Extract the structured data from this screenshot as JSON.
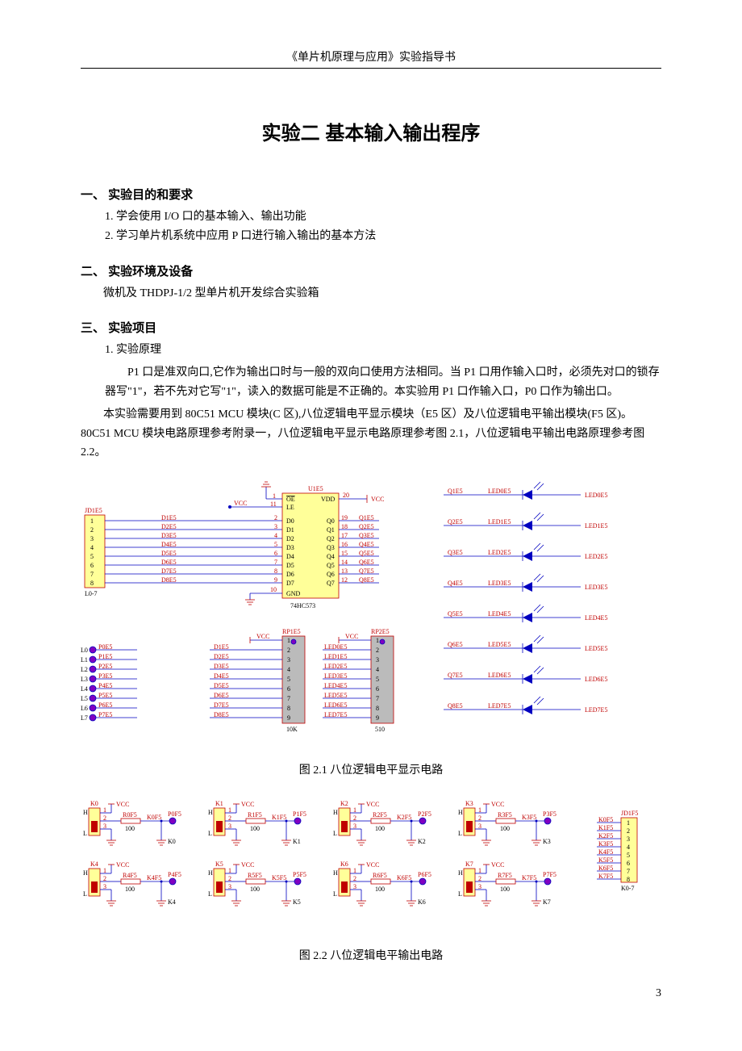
{
  "header": "《单片机原理与应用》实验指导书",
  "title": "实验二  基本输入输出程序",
  "s1": {
    "head": "一、    实验目的和要求",
    "i1": "1.    学会使用 I/O 口的基本输入、输出功能",
    "i2": "2.    学习单片机系统中应用 P 口进行输入输出的基本方法"
  },
  "s2": {
    "head": "二、    实验环境及设备",
    "p1": "微机及 THDPJ-1/2 型单片机开发综合实验箱"
  },
  "s3": {
    "head": "三、    实验项目",
    "i1": "1.    实验原理",
    "p1": "P1 口是准双向口,它作为输出口时与一般的双向口使用方法相同。当 P1 口用作输入口时，必须先对口的锁存器写\"1\"，若不先对它写\"1\"，读入的数据可能是不正确的。本实验用 P1 口作输入口，P0 口作为输出口。",
    "p2": "本实验需要用到 80C51 MCU 模块(C 区),八位逻辑电平显示模块（E5 区）及八位逻辑电平输出模块(F5 区)。80C51 MCU 模块电路原理参考附录一，八位逻辑电平显示电路原理参考图 2.1，八位逻辑电平输出电路原理参考图 2.2。"
  },
  "fig1": {
    "caption": "图 2.1   八位逻辑电平显示电路",
    "chip": "74HC573",
    "chip_ref": "U1E5",
    "conn": "JD1E5",
    "conn2": "L0-7",
    "gnd_pin": "10",
    "gnd_lbl": "GND",
    "vcc_lbl": "VCC",
    "vdd_lbl": "VDD",
    "vdd_pin": "20",
    "oe_lbl": "OE",
    "le_lbl": "LE",
    "oe_pin": "1",
    "le_pin": "11",
    "d_pins": [
      "D0",
      "D1",
      "D2",
      "D3",
      "D4",
      "D5",
      "D6",
      "D7"
    ],
    "d_nums": [
      "2",
      "3",
      "4",
      "5",
      "6",
      "7",
      "8",
      "9"
    ],
    "q_pins": [
      "Q0",
      "Q1",
      "Q2",
      "Q3",
      "Q4",
      "Q5",
      "Q6",
      "Q7"
    ],
    "q_nums": [
      "19",
      "18",
      "17",
      "16",
      "15",
      "14",
      "13",
      "12"
    ],
    "d_nets": [
      "D1E5",
      "D2E5",
      "D3E5",
      "D4E5",
      "D5E5",
      "D6E5",
      "D7E5",
      "D8E5"
    ],
    "q_nets": [
      "Q1E5",
      "Q2E5",
      "Q3E5",
      "Q4E5",
      "Q5E5",
      "Q6E5",
      "Q7E5",
      "Q8E5"
    ],
    "led_q": [
      "Q1E5",
      "Q2E5",
      "Q3E5",
      "Q4E5",
      "Q5E5",
      "Q6E5",
      "Q7E5",
      "Q8E5"
    ],
    "led_mid": [
      "LED0E5",
      "LED1E5",
      "LED2E5",
      "LED3E5",
      "LED4E5",
      "LED5E5",
      "LED6E5",
      "LED7E5"
    ],
    "led_r": [
      "LED0E5",
      "LED1E5",
      "LED2E5",
      "LED3E5",
      "LED4E5",
      "LED5E5",
      "LED6E5",
      "LED7E5"
    ],
    "rp1": "RP1E5",
    "rp2": "RP2E5",
    "rp1_val": "10K",
    "rp2_val": "510",
    "p_lbls": [
      "L0",
      "L1",
      "L2",
      "L3",
      "L4",
      "L5",
      "L6",
      "L7"
    ],
    "p_nets": [
      "P0E5",
      "P1E5",
      "P2E5",
      "P3E5",
      "P4E5",
      "P5E5",
      "P6E5",
      "P7E5"
    ],
    "rp1_left": [
      "D1E5",
      "D2E5",
      "D3E5",
      "D4E5",
      "D5E5",
      "D6E5",
      "D7E5",
      "D8E5"
    ],
    "rp2_left": [
      "LED0E5",
      "LED1E5",
      "LED2E5",
      "LED3E5",
      "LED4E5",
      "LED5E5",
      "LED6E5",
      "LED7E5"
    ],
    "nums9": [
      "1",
      "2",
      "3",
      "4",
      "5",
      "6",
      "7",
      "8",
      "9"
    ]
  },
  "fig2": {
    "caption": "图 2.2   八位逻辑电平输出电路",
    "switches": [
      {
        "k": "K0",
        "r": "R0F5",
        "out": "K0F5",
        "p": "P0F5",
        "gnd": "K0"
      },
      {
        "k": "K1",
        "r": "R1F5",
        "out": "K1F5",
        "p": "P1F5",
        "gnd": "K1"
      },
      {
        "k": "K2",
        "r": "R2F5",
        "out": "K2F5",
        "p": "P2F5",
        "gnd": "K2"
      },
      {
        "k": "K3",
        "r": "R3F5",
        "out": "K3F5",
        "p": "P3F5",
        "gnd": "K3"
      },
      {
        "k": "K4",
        "r": "R4F5",
        "out": "K4F5",
        "p": "P4F5",
        "gnd": "K4"
      },
      {
        "k": "K5",
        "r": "R5F5",
        "out": "K5F5",
        "p": "P5F5",
        "gnd": "K5"
      },
      {
        "k": "K6",
        "r": "R6F5",
        "out": "K6F5",
        "p": "P6F5",
        "gnd": "K6"
      },
      {
        "k": "K7",
        "r": "R7F5",
        "out": "K7F5",
        "p": "P7F5",
        "gnd": "K7"
      }
    ],
    "vcc": "VCC",
    "h": "H",
    "l": "L",
    "r_val": "100",
    "pins": [
      "1",
      "2",
      "3"
    ],
    "conn": "JD1F5",
    "conn_nets": [
      "K0F5",
      "K1F5",
      "K2F5",
      "K3F5",
      "K4F5",
      "K5F5",
      "K6F5",
      "K7F5"
    ],
    "conn_nums": [
      "1",
      "2",
      "3",
      "4",
      "5",
      "6",
      "7",
      "8"
    ],
    "conn_lbl": "K0-7"
  },
  "page": "3",
  "colors": {
    "red": "#c00000",
    "blue": "#0000c0",
    "yellow": "#ffff99",
    "grey": "#bbbbbb"
  }
}
